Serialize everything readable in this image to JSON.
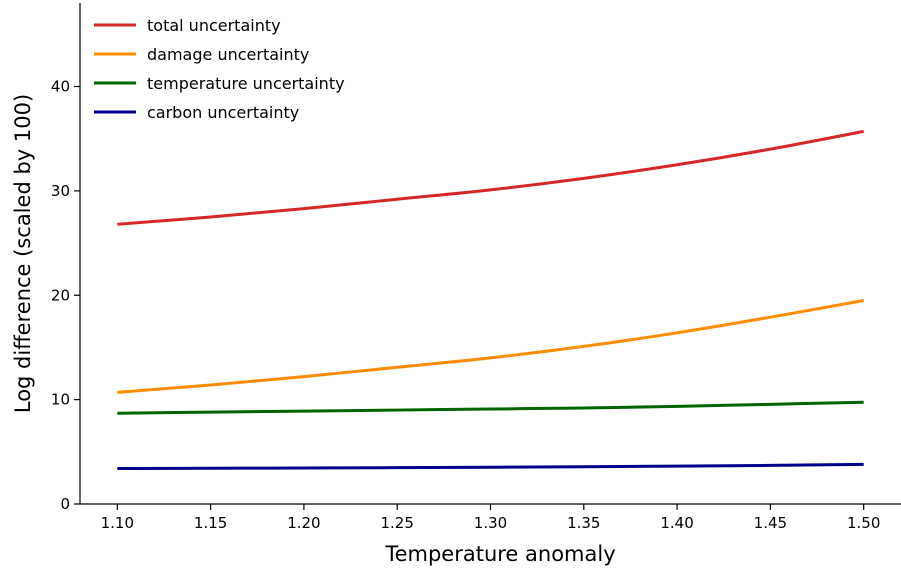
{
  "chart_data": {
    "type": "line",
    "title": "",
    "xlabel": "Temperature anomaly",
    "ylabel": "Log difference (scaled by 100)",
    "xlim": [
      1.08,
      1.52
    ],
    "ylim": [
      0,
      48
    ],
    "xticks": [
      1.1,
      1.15,
      1.2,
      1.25,
      1.3,
      1.35,
      1.4,
      1.45,
      1.5
    ],
    "xtick_labels": [
      "1.10",
      "1.15",
      "1.20",
      "1.25",
      "1.30",
      "1.35",
      "1.40",
      "1.45",
      "1.50"
    ],
    "yticks": [
      0,
      10,
      20,
      30,
      40
    ],
    "ytick_labels": [
      "0",
      "10",
      "20",
      "30",
      "40"
    ],
    "grid": false,
    "legend_position": "top-left",
    "x": [
      1.1,
      1.15,
      1.2,
      1.25,
      1.3,
      1.35,
      1.4,
      1.45,
      1.5
    ],
    "series": [
      {
        "name": "total uncertainty",
        "color": "#d62728",
        "values": [
          26.8,
          27.5,
          28.3,
          29.2,
          30.1,
          31.2,
          32.5,
          34.0,
          35.7
        ]
      },
      {
        "name": "damage uncertainty",
        "color": "#ff8c00",
        "values": [
          10.7,
          11.4,
          12.2,
          13.1,
          14.0,
          15.1,
          16.4,
          17.9,
          19.5
        ]
      },
      {
        "name": "temperature uncertainty",
        "color": "#006400",
        "values": [
          8.7,
          8.8,
          8.9,
          9.0,
          9.1,
          9.2,
          9.35,
          9.55,
          9.75
        ]
      },
      {
        "name": "carbon uncertainty",
        "color": "#00008b",
        "values": [
          3.4,
          3.42,
          3.45,
          3.48,
          3.52,
          3.57,
          3.63,
          3.7,
          3.8
        ]
      }
    ]
  }
}
